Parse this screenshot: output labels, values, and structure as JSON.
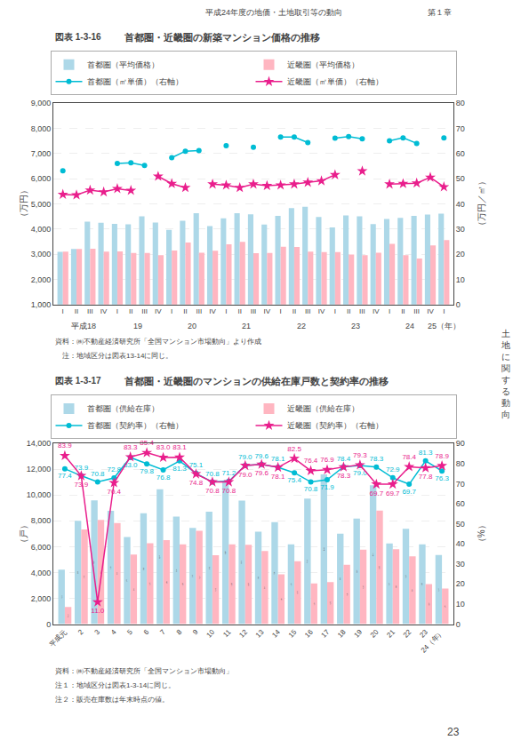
{
  "chart_data": [
    {
      "type": "bar",
      "title": "首都圏・近畿圏の新築マンション価格の推移",
      "ylabel": "（万円）",
      "y2label": "（万円／㎡）",
      "annotations": [
        {
          "text": "図表 1-3-16"
        },
        {
          "text": "平成18",
          "x": 1.5
        },
        {
          "text": "19",
          "x": 5.5
        },
        {
          "text": "20",
          "x": 9.5
        },
        {
          "text": "21",
          "x": 13.5
        },
        {
          "text": "22",
          "x": 17.5
        },
        {
          "text": "23",
          "x": 21.5
        },
        {
          "text": "24",
          "x": 25.5
        },
        {
          "text": "25（年）",
          "x": 28
        },
        {
          "text": "資料：㈱不動産経済研究所「全国マンション市場動向」より作成"
        },
        {
          "text": "　注：地域区分は図表13-14に同じ。"
        },
        {
          "text": "平成24年度の地価・土地取引等の動向"
        },
        {
          "text": "第１章"
        }
      ],
      "categories": [
        "I",
        "II",
        "III",
        "IV",
        "I",
        "II",
        "III",
        "IV",
        "I",
        "II",
        "III",
        "IV",
        "I",
        "II",
        "III",
        "IV",
        "I",
        "II",
        "III",
        "IV",
        "I",
        "II",
        "III",
        "IV",
        "I",
        "II",
        "III",
        "IV",
        "I"
      ],
      "series": [
        {
          "name": "首都圏（平均価格）",
          "type": "bar",
          "color": "#add8e8",
          "values": [
            3094,
            3209,
            4290,
            4250,
            4205,
            4185,
            4506,
            4254,
            3962,
            4329,
            4628,
            4116,
            4421,
            4630,
            4580,
            4173,
            4521,
            4826,
            4884,
            4473,
            4066,
            4540,
            4506,
            4197,
            4399,
            4444,
            4520,
            4574,
            4609
          ]
        },
        {
          "name": "近畿圏（平均価格）",
          "type": "bar",
          "color": "#ffb6c1",
          "values": [
            3104,
            3205,
            3211,
            3102,
            3107,
            3045,
            3045,
            2961,
            3145,
            3462,
            3060,
            3133,
            3391,
            3491,
            3038,
            3045,
            3294,
            3282,
            3099,
            3080,
            3082,
            2985,
            2958,
            3056,
            3405,
            2960,
            2830,
            3346,
            3560
          ]
        },
        {
          "name": "首都圏（㎡単価）（右軸）",
          "type": "line",
          "axis": "y2",
          "color": "#00bcd4",
          "marker": "circle",
          "values": [
            53.1,
            null,
            null,
            null,
            56.0,
            56.3,
            55.2,
            null,
            58.3,
            60.9,
            61.1,
            null,
            63.1,
            null,
            62.5,
            null,
            66.5,
            66.5,
            64.3,
            null,
            66.1,
            66.7,
            65.8,
            null,
            65.0,
            66.2,
            64.0,
            null,
            66.2
          ]
        },
        {
          "name": "近畿圏（㎡単価）（右軸）",
          "type": "line",
          "axis": "y2",
          "color": "#e91e8c",
          "marker": "star",
          "values": [
            43.7,
            43.5,
            45.4,
            44.7,
            46.0,
            45.3,
            null,
            50.9,
            48.0,
            46.4,
            null,
            47.8,
            47.4,
            46.4,
            47.8,
            47.2,
            47.4,
            47.8,
            48.5,
            49.1,
            51.5,
            null,
            53.0,
            null,
            47.8,
            48.0,
            48.2,
            50.5,
            46.7
          ]
        }
      ],
      "ylim": [
        1000,
        9000
      ],
      "yticks": [
        {
          "value": 1000,
          "label": "1,000"
        },
        {
          "value": 2000,
          "label": "2,000"
        },
        {
          "value": 3000,
          "label": "3,000"
        },
        {
          "value": 4000,
          "label": "4,000"
        },
        {
          "value": 5000,
          "label": "5,000"
        },
        {
          "value": 6000,
          "label": "6,000"
        },
        {
          "value": 7000,
          "label": "7,000"
        },
        {
          "value": 8000,
          "label": "8,000"
        },
        {
          "value": 9000,
          "label": "9,000"
        }
      ],
      "y2lim": [
        0,
        80
      ],
      "y2ticks": [
        0,
        10,
        20,
        30,
        40,
        50,
        60,
        70,
        80
      ],
      "grid": true,
      "legend": "top"
    },
    {
      "type": "bar",
      "title": "首都圏・近畿圏のマンションの供給在庫戸数と契約率の推移",
      "ylabel": "（戸）",
      "y2label": "（%）",
      "annotations": [
        {
          "text": "図表 1-3-17"
        },
        {
          "text": "資料：㈱不動産経済研究所「全国マンション市場動向」"
        },
        {
          "text": "注１：地域区分は図表1-3-14に同じ。"
        },
        {
          "text": "注２：販売在庫数は年末時点の値。"
        },
        {
          "text": "23"
        },
        {
          "text": "土地に関する動向"
        }
      ],
      "categories": [
        "平成元",
        "2",
        "3",
        "4",
        "5",
        "6",
        "7",
        "8",
        "9",
        "10",
        "11",
        "12",
        "13",
        "14",
        "15",
        "16",
        "17",
        "18",
        "19",
        "20",
        "21",
        "22",
        "23",
        "24（年）"
      ],
      "series": [
        {
          "name": "首都圏（供給在庫）",
          "type": "bar",
          "color": "#add8e8",
          "values": [
            4222,
            8014,
            9583,
            8783,
            6749,
            8583,
            10447,
            8330,
            7449,
            8712,
            11107,
            9571,
            7168,
            7900,
            6173,
            9728,
            11611,
            7000,
            8175,
            10763,
            6244,
            7389,
            6188,
            5347
          ],
          "value_labels": [
            "4,222",
            "8,014",
            "9,583",
            "8,783",
            "6,749",
            "8,583",
            "10,447",
            "8,330",
            "7,449",
            "8,712",
            "11,107",
            "9,571",
            "7,168",
            "7,900",
            "6,173",
            "9,728",
            "11,611",
            "7,000",
            "8,175",
            "10,763",
            "6,244",
            "7,389",
            "6,188",
            "5,347"
          ]
        },
        {
          "name": "近畿圏（供給在庫）",
          "type": "bar",
          "color": "#ffb6c1",
          "values": [
            1326,
            7330,
            8074,
            7838,
            5393,
            6275,
            6506,
            6185,
            7224,
            5338,
            6185,
            6155,
            5664,
            3854,
            4871,
            3144,
            3251,
            4600,
            5769,
            8800,
            5800,
            5253,
            3107,
            2753
          ],
          "value_labels": [
            "1,326",
            "7,330",
            "8,074",
            "7,838",
            "5,393",
            "6,275",
            "6,506",
            "6,185",
            "7,224",
            "5,338",
            "6,185",
            "6,155",
            "5,664",
            "3,854",
            "4,871",
            "3,144",
            "3,251",
            "4,600",
            "5,769",
            "8,800",
            "5,800",
            "5,253",
            "3,107",
            "2,753"
          ]
        },
        {
          "name": "首都圏（契約率）（右軸）",
          "type": "line",
          "axis": "y2",
          "color": "#00bcd4",
          "marker": "circle",
          "values": [
            77.4,
            73.9,
            70.8,
            72.8,
            83.0,
            79.8,
            76.8,
            81.3,
            75.1,
            70.8,
            71.2,
            79.0,
            79.6,
            78.1,
            75.4,
            70.8,
            71.9,
            78.4,
            79.0,
            78.3,
            72.9,
            69.7,
            81.3,
            76.3
          ],
          "value_labels": [
            "77.4",
            "73.9",
            "70.8",
            "72.8",
            "83.0",
            "79.8",
            "76.8",
            "81.3",
            "75.1",
            "70.8",
            "71.2",
            "79.0",
            "79.6",
            "78.1",
            "75.4",
            "70.8",
            "71.9",
            "78.4",
            "79.0",
            "78.3",
            "72.9",
            "69.7",
            "81.3",
            "76.3"
          ]
        },
        {
          "name": "近畿圏（契約率）（右軸）",
          "type": "line",
          "axis": "y2",
          "color": "#e91e8c",
          "marker": "star",
          "values": [
            83.9,
            73.9,
            11.0,
            70.4,
            83.3,
            85.4,
            83.0,
            83.1,
            74.8,
            70.8,
            70.8,
            79.0,
            79.6,
            78.1,
            82.5,
            76.4,
            76.9,
            78.3,
            79.3,
            69.7,
            69.7,
            78.4,
            77.8,
            78.9
          ],
          "value_labels": [
            "83.9",
            "73.9",
            "11.0",
            "70.4",
            "83.3",
            "85.4",
            "83.0",
            "83.1",
            "74.8",
            "70.8",
            "70.8",
            "79.0",
            "79.6",
            "78.1",
            "82.5",
            "76.4",
            "76.9",
            "78.3",
            "79.3",
            "69.7",
            "69.7",
            "78.4",
            "77.8",
            "78.9"
          ]
        }
      ],
      "ylim": [
        0,
        14000
      ],
      "yticks": [
        0,
        {
          "value": 2000,
          "label": "2,000"
        },
        {
          "value": 4000,
          "label": "4,000"
        },
        {
          "value": 6000,
          "label": "6,000"
        },
        {
          "value": 8000,
          "label": "8,000"
        },
        {
          "value": 10000,
          "label": "10,000"
        },
        {
          "value": 12000,
          "label": "12,000"
        },
        {
          "value": 14000,
          "label": "14,000"
        }
      ],
      "y2lim": [
        0,
        90
      ],
      "y2ticks": [
        0,
        10,
        20,
        30,
        40,
        50,
        60,
        70,
        80,
        90
      ],
      "grid": true,
      "legend": "top",
      "data_labels": true
    }
  ]
}
